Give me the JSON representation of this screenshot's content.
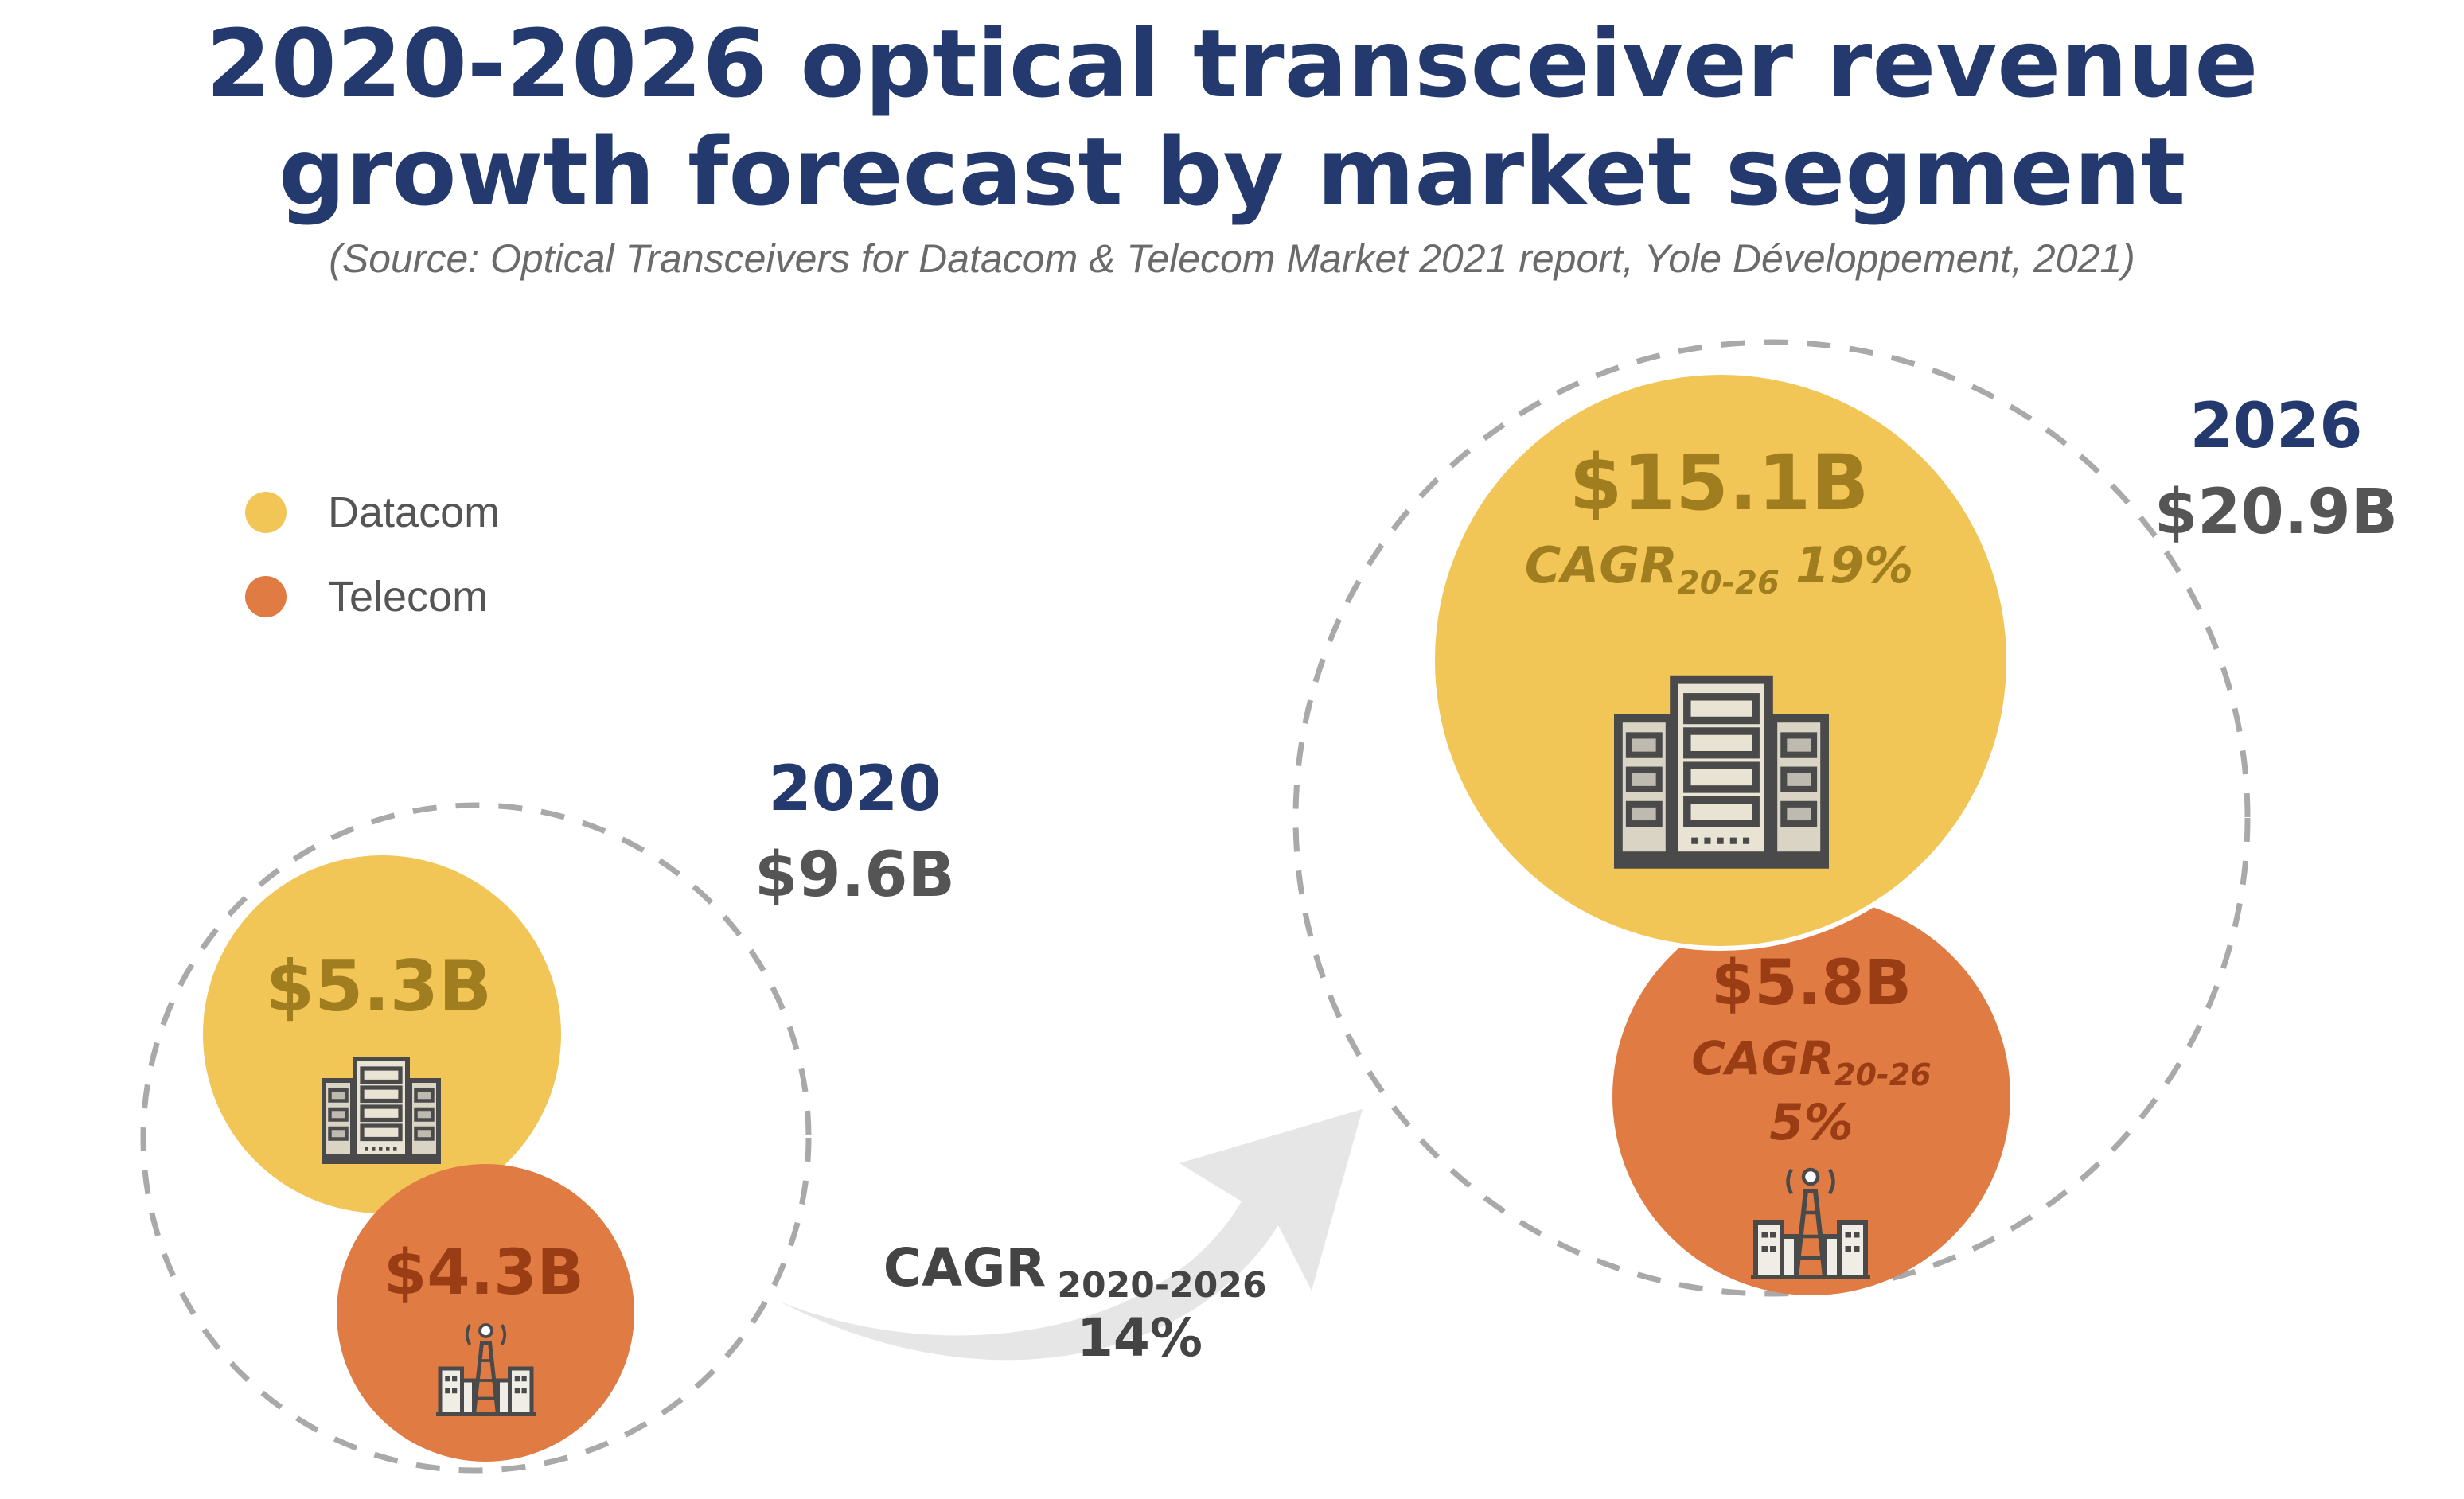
{
  "title_line1": "2020-2026 optical transceiver revenue",
  "title_line2": "growth forecast by market segment",
  "source": "(Source: Optical Transceivers for Datacom & Telecom Market 2021 report, Yole Développement, 2021)",
  "legend": [
    {
      "label": "Datacom",
      "color": "#f2c557"
    },
    {
      "label": "Telecom",
      "color": "#e07b43"
    }
  ],
  "colors": {
    "datacom": "#f2c557",
    "telecom": "#e07b43",
    "datacom_text": "#a07d1e",
    "telecom_text": "#9a3d14",
    "year_text": "#243a6e",
    "total_text": "#555555",
    "dashed": "#a9a9a9"
  },
  "arrow": {
    "cagr_label": "CAGR",
    "cagr_sub": "2020-2026",
    "cagr_value": "14%"
  },
  "chart_data": {
    "type": "bubble",
    "unit": "$B",
    "years": [
      {
        "year": "2020",
        "total_label": "$9.6B",
        "total": 9.6,
        "segments": [
          {
            "name": "Datacom",
            "label": "$5.3B",
            "value": 5.3,
            "icon": "server-rack-icon"
          },
          {
            "name": "Telecom",
            "label": "$4.3B",
            "value": 4.3,
            "icon": "telecom-tower-icon"
          }
        ]
      },
      {
        "year": "2026",
        "total_label": "$20.9B",
        "total": 20.9,
        "segments": [
          {
            "name": "Datacom",
            "label": "$15.1B",
            "value": 15.1,
            "cagr_label": "CAGR",
            "cagr_sub": "20-26",
            "cagr": "19%",
            "icon": "server-rack-icon"
          },
          {
            "name": "Telecom",
            "label": "$5.8B",
            "value": 5.8,
            "cagr_label": "CAGR",
            "cagr_sub": "20-26",
            "cagr": "5%",
            "icon": "telecom-tower-icon"
          }
        ]
      }
    ],
    "overall_cagr": "14%"
  }
}
